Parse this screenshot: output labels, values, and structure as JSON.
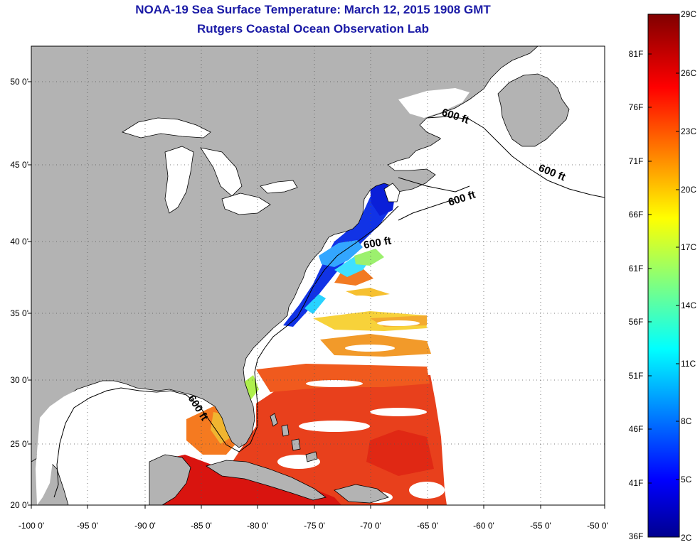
{
  "title": {
    "line1": "NOAA-19 Sea Surface Temperature:  March 12, 2015 1908 GMT",
    "line2": "Rutgers Coastal Ocean Observation Lab"
  },
  "map": {
    "lon_range": [
      -100,
      -50
    ],
    "lat_range": [
      20,
      52.5
    ],
    "lat_labels": [
      "20 0'",
      "25 0'",
      "30 0'",
      "35 0'",
      "40 0'",
      "45 0'",
      "50 0'"
    ],
    "lon_labels": [
      "-100 0'",
      "-95 0'",
      "-90 0'",
      "-85 0'",
      "-80 0'",
      "-75 0'",
      "-70 0'",
      "-65 0'",
      "-60 0'",
      "-55 0'",
      "-50 0'"
    ],
    "isobath_label": "600 ft",
    "colors": {
      "land": "#b3b3b3",
      "cloud": "#ffffff",
      "grid": "#666666"
    }
  },
  "colorbar": {
    "celsius_labels": [
      "29C",
      "26C",
      "23C",
      "20C",
      "17C",
      "14C",
      "11C",
      "8C",
      "5C",
      "2C"
    ],
    "fahrenheit_labels": [
      "81F",
      "76F",
      "71F",
      "66F",
      "61F",
      "56F",
      "51F",
      "46F",
      "41F",
      "36F"
    ],
    "colormap": "jet",
    "range_celsius": [
      2,
      29
    ]
  }
}
